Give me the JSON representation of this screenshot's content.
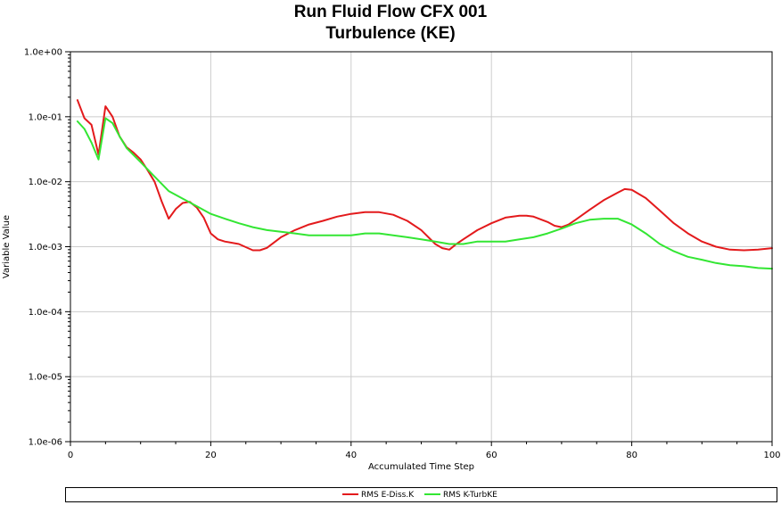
{
  "chart_data": {
    "type": "line",
    "title": [
      "Run Fluid Flow CFX 001",
      "Turbulence (KE)"
    ],
    "xlabel": "Accumulated Time Step",
    "ylabel": "Variable Value",
    "xlim": [
      0,
      100
    ],
    "ylim": [
      1e-06,
      1
    ],
    "yscale": "log",
    "grid": true,
    "legend_position": "bottom",
    "x_ticks": [
      0,
      20,
      40,
      60,
      80,
      100
    ],
    "x_tick_labels": [
      "0",
      "20",
      "40",
      "60",
      "80",
      "100"
    ],
    "y_ticks": [
      1e-06,
      1e-05,
      0.0001,
      0.001,
      0.01,
      0.1,
      1
    ],
    "y_tick_labels": [
      "1.0e-06",
      "1.0e-05",
      "1.0e-04",
      "1.0e-03",
      "1.0e-02",
      "1.0e-01",
      "1.0e+00"
    ],
    "series": [
      {
        "name": "RMS E-Diss.K",
        "color": "#e31a1c",
        "x": [
          1,
          2,
          3,
          4,
          5,
          6,
          7,
          8,
          9,
          10,
          11,
          12,
          13,
          14,
          15,
          16,
          17,
          18,
          19,
          20,
          21,
          22,
          24,
          26,
          27,
          28,
          30,
          32,
          34,
          36,
          38,
          40,
          42,
          44,
          46,
          48,
          50,
          52,
          53,
          54,
          55,
          56,
          58,
          60,
          62,
          64,
          65,
          66,
          68,
          69,
          70,
          71,
          72,
          74,
          76,
          78,
          79,
          80,
          82,
          84,
          86,
          88,
          90,
          92,
          94,
          96,
          98,
          100
        ],
        "values": [
          0.18,
          0.095,
          0.075,
          0.026,
          0.145,
          0.1,
          0.05,
          0.034,
          0.028,
          0.022,
          0.015,
          0.01,
          0.005,
          0.0027,
          0.0038,
          0.0047,
          0.0049,
          0.004,
          0.0028,
          0.0016,
          0.0013,
          0.0012,
          0.0011,
          0.00088,
          0.00088,
          0.00096,
          0.0014,
          0.0018,
          0.0022,
          0.0025,
          0.0029,
          0.0032,
          0.0034,
          0.0034,
          0.0031,
          0.0025,
          0.0018,
          0.0011,
          0.00095,
          0.0009,
          0.0011,
          0.0013,
          0.0018,
          0.0023,
          0.0028,
          0.003,
          0.003,
          0.0029,
          0.0024,
          0.0021,
          0.002,
          0.0022,
          0.0026,
          0.0037,
          0.0052,
          0.0068,
          0.0077,
          0.0075,
          0.0056,
          0.0036,
          0.0023,
          0.0016,
          0.0012,
          0.001,
          0.0009,
          0.00088,
          0.0009,
          0.00095
        ]
      },
      {
        "name": "RMS K-TurbKE",
        "color": "#33e633",
        "x": [
          1,
          2,
          3,
          4,
          5,
          6,
          7,
          8,
          10,
          12,
          14,
          16,
          18,
          20,
          22,
          24,
          26,
          28,
          30,
          32,
          34,
          36,
          38,
          40,
          42,
          44,
          46,
          48,
          50,
          52,
          54,
          56,
          58,
          60,
          62,
          64,
          66,
          68,
          70,
          72,
          74,
          76,
          78,
          80,
          82,
          84,
          86,
          88,
          90,
          92,
          94,
          96,
          98,
          100
        ],
        "values": [
          0.085,
          0.065,
          0.04,
          0.022,
          0.095,
          0.08,
          0.05,
          0.033,
          0.02,
          0.012,
          0.0072,
          0.0055,
          0.0042,
          0.0032,
          0.0027,
          0.0023,
          0.002,
          0.0018,
          0.0017,
          0.0016,
          0.0015,
          0.0015,
          0.0015,
          0.0015,
          0.0016,
          0.0016,
          0.0015,
          0.0014,
          0.0013,
          0.0012,
          0.0011,
          0.0011,
          0.0012,
          0.0012,
          0.0012,
          0.0013,
          0.0014,
          0.0016,
          0.0019,
          0.0023,
          0.0026,
          0.0027,
          0.0027,
          0.0022,
          0.0016,
          0.0011,
          0.00085,
          0.0007,
          0.00063,
          0.00056,
          0.00052,
          0.0005,
          0.00047,
          0.00046
        ]
      }
    ]
  }
}
